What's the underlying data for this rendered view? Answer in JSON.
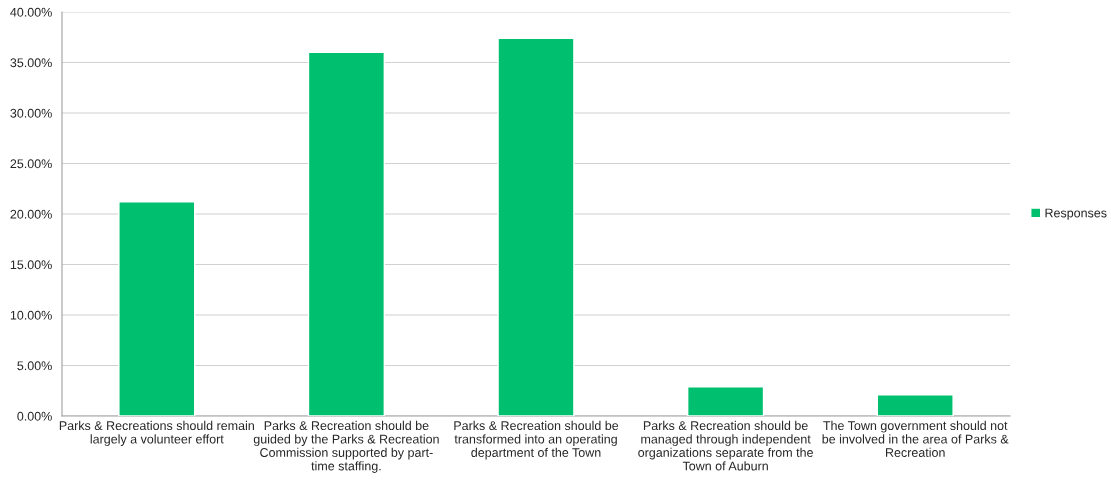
{
  "chart_data": {
    "type": "bar",
    "categories": [
      "Parks & Recreations should remain\nlargely a volunteer effort",
      "Parks & Recreation should be\nguided by the Parks & Recreation\nCommission supported by part-\ntime staffing.",
      "Parks & Recreation should be\ntransformed into an operating\ndepartment of the Town",
      "Parks & Recreation should be\nmanaged through independent\norganizations separate from the\nTown of Auburn",
      "The Town government should not\nbe involved in the area of Parks &\nRecreation"
    ],
    "series": [
      {
        "name": "Responses",
        "color": "#00bf6f",
        "values": [
          21.2,
          36.0,
          37.4,
          2.9,
          2.1
        ]
      }
    ],
    "ylim": [
      0,
      40
    ],
    "yticks": [
      {
        "value": 0,
        "label": "0.00%"
      },
      {
        "value": 5,
        "label": "5.00%"
      },
      {
        "value": 10,
        "label": "10.00%"
      },
      {
        "value": 15,
        "label": "15.00%"
      },
      {
        "value": 20,
        "label": "20.00%"
      },
      {
        "value": 25,
        "label": "25.00%"
      },
      {
        "value": 30,
        "label": "30.00%"
      },
      {
        "value": 35,
        "label": "35.00%"
      },
      {
        "value": 40,
        "label": "40.00%"
      }
    ],
    "grid": "y",
    "legend": "right"
  }
}
